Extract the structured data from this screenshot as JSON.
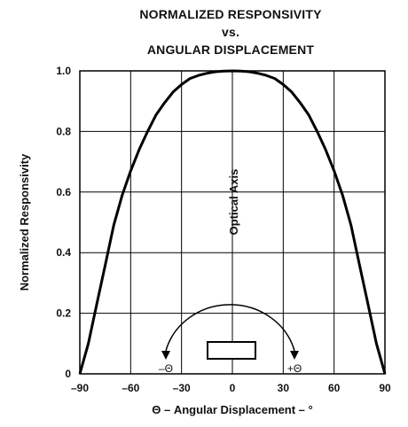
{
  "chart_data": {
    "type": "line",
    "title_lines": [
      "NORMALIZED RESPONSIVITY",
      "vs.",
      "ANGULAR DISPLACEMENT"
    ],
    "xlabel": "Θ – Angular Displacement – °",
    "ylabel": "Normalized Responsivity",
    "xlim": [
      -90,
      90
    ],
    "ylim": [
      0,
      1.0
    ],
    "x_ticks": [
      -90,
      -60,
      -30,
      0,
      30,
      60,
      90
    ],
    "x_tick_labels": [
      "–90",
      "–60",
      "–30",
      "0",
      "30",
      "60",
      "90"
    ],
    "y_ticks": [
      0,
      0.2,
      0.4,
      0.6,
      0.8,
      1.0
    ],
    "y_tick_labels": [
      "0",
      "0.2",
      "0.4",
      "0.6",
      "0.8",
      "1.0"
    ],
    "grid": true,
    "series": [
      {
        "x": [
          -90,
          -85,
          -80,
          -75,
          -70,
          -65,
          -60,
          -55,
          -50,
          -45,
          -40,
          -35,
          -30,
          -25,
          -20,
          -15,
          -10,
          -5,
          0,
          5,
          10,
          15,
          20,
          25,
          30,
          35,
          40,
          45,
          50,
          55,
          60,
          65,
          70,
          75,
          80,
          85,
          90
        ],
        "y": [
          0.0,
          0.1,
          0.23,
          0.36,
          0.49,
          0.59,
          0.67,
          0.74,
          0.8,
          0.855,
          0.895,
          0.93,
          0.955,
          0.975,
          0.985,
          0.992,
          0.997,
          0.999,
          1.0,
          0.999,
          0.997,
          0.992,
          0.985,
          0.975,
          0.955,
          0.93,
          0.895,
          0.855,
          0.8,
          0.74,
          0.67,
          0.59,
          0.49,
          0.36,
          0.23,
          0.1,
          0.0
        ]
      }
    ],
    "annotations": {
      "optical_axis_label": "Optical Axis",
      "minus_label": "–Θ",
      "plus_label": "+Θ"
    }
  }
}
